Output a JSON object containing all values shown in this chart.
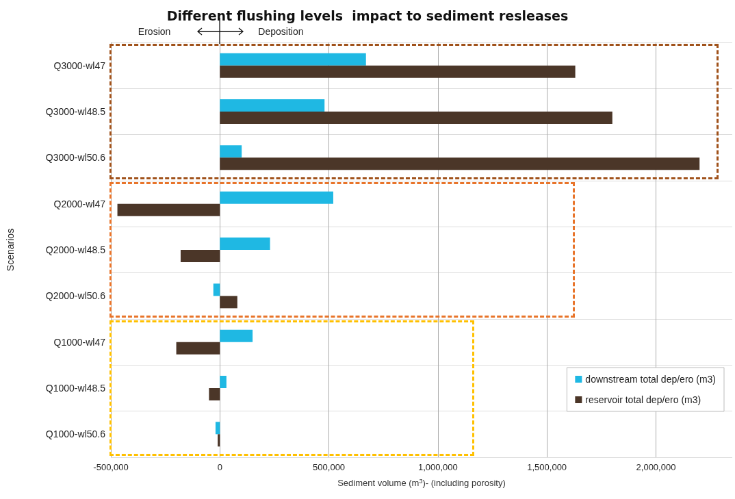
{
  "chart_data": {
    "type": "bar",
    "orientation": "horizontal",
    "title": "Different flushing levels  impact to sediment resleases",
    "xlabel": "Sediment volume (m$^{3}$)- (including porosity)",
    "ylabel": "Scenarios",
    "categories": [
      "Q3000-wl47",
      "Q3000-wl48.5",
      "Q3000-wl50.6",
      "Q2000-wl47",
      "Q2000-wl48.5",
      "Q2000-wl50.6",
      "Q1000-wl47",
      "Q1000-wl48.5",
      "Q1000-wl50.6"
    ],
    "series": [
      {
        "name": "downstream total dep/ero (m3)",
        "color": "#1fb8e3",
        "values": [
          670000,
          480000,
          100000,
          520000,
          230000,
          -30000,
          150000,
          30000,
          -20000
        ]
      },
      {
        "name": "reservoir total dep/ero (m3)",
        "color": "#4b3628",
        "values": [
          1630000,
          1800000,
          2200000,
          -470000,
          -180000,
          80000,
          -200000,
          -50000,
          -10000
        ]
      }
    ],
    "xlim": [
      -500000,
      2350000
    ],
    "xticks": [
      {
        "value": -500000,
        "label": "-500,000"
      },
      0,
      {
        "value": 500000,
        "label": "500,000"
      },
      {
        "value": 1000000,
        "label": "1,000,000"
      },
      {
        "value": 1500000,
        "label": "1,500,000"
      },
      {
        "value": 2000000,
        "label": "2,000,000"
      }
    ],
    "grid": true,
    "legend": "bottom right",
    "annotations": [
      "Erosion",
      "Deposition"
    ]
  }
}
